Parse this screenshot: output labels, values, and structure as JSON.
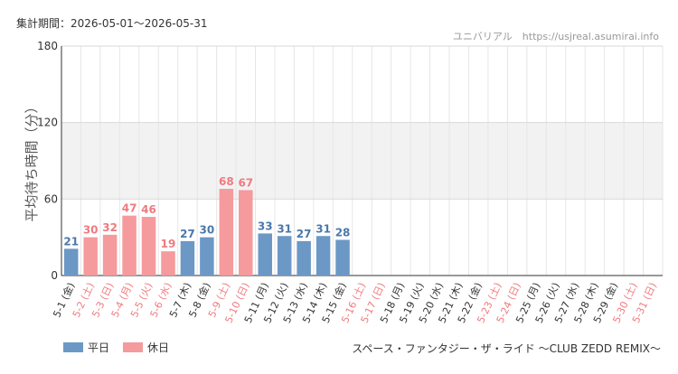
{
  "header": {
    "period_label": "集計期間：2026-05-01〜2026-05-31",
    "credit": "ユニバリアル　https://usjreal.asumirai.info"
  },
  "footer": {
    "attraction": "スペース・ファンタジー・ザ・ライド 〜CLUB ZEDD REMIX〜"
  },
  "colors": {
    "weekday": "#6c98c6",
    "holiday": "#f59a9d",
    "weekday_text": "#4a78ab",
    "holiday_text": "#ef7b7f",
    "tick_default": "#333333",
    "band": "#f2f2f2",
    "grid": "#e6e6e6"
  },
  "chart_data": {
    "type": "bar",
    "title": "",
    "xlabel": "",
    "ylabel": "平均待ち時間（分）",
    "ylim": [
      0,
      180
    ],
    "yticks": [
      0,
      60,
      120,
      180
    ],
    "shaded_band": [
      60,
      120
    ],
    "grid": true,
    "legend_position": "bottom-left",
    "series": [
      {
        "name": "平日",
        "color": "#6c98c6"
      },
      {
        "name": "休日",
        "color": "#f59a9d"
      }
    ],
    "categories": [
      {
        "label": "5-1 (金)",
        "type": "weekday",
        "value": 21
      },
      {
        "label": "5-2 (土)",
        "type": "holiday",
        "value": 30
      },
      {
        "label": "5-3 (日)",
        "type": "holiday",
        "value": 32
      },
      {
        "label": "5-4 (月)",
        "type": "holiday",
        "value": 47
      },
      {
        "label": "5-5 (火)",
        "type": "holiday",
        "value": 46
      },
      {
        "label": "5-6 (水)",
        "type": "holiday",
        "value": 19
      },
      {
        "label": "5-7 (木)",
        "type": "weekday",
        "value": 27
      },
      {
        "label": "5-8 (金)",
        "type": "weekday",
        "value": 30
      },
      {
        "label": "5-9 (土)",
        "type": "holiday",
        "value": 68
      },
      {
        "label": "5-10 (日)",
        "type": "holiday",
        "value": 67
      },
      {
        "label": "5-11 (月)",
        "type": "weekday",
        "value": 33
      },
      {
        "label": "5-12 (火)",
        "type": "weekday",
        "value": 31
      },
      {
        "label": "5-13 (水)",
        "type": "weekday",
        "value": 27
      },
      {
        "label": "5-14 (木)",
        "type": "weekday",
        "value": 31
      },
      {
        "label": "5-15 (金)",
        "type": "weekday",
        "value": 28
      },
      {
        "label": "5-16 (土)",
        "type": "holiday",
        "value": null
      },
      {
        "label": "5-17 (日)",
        "type": "holiday",
        "value": null
      },
      {
        "label": "5-18 (月)",
        "type": "weekday",
        "value": null
      },
      {
        "label": "5-19 (火)",
        "type": "weekday",
        "value": null
      },
      {
        "label": "5-20 (水)",
        "type": "weekday",
        "value": null
      },
      {
        "label": "5-21 (木)",
        "type": "weekday",
        "value": null
      },
      {
        "label": "5-22 (金)",
        "type": "weekday",
        "value": null
      },
      {
        "label": "5-23 (土)",
        "type": "holiday",
        "value": null
      },
      {
        "label": "5-24 (日)",
        "type": "holiday",
        "value": null
      },
      {
        "label": "5-25 (月)",
        "type": "weekday",
        "value": null
      },
      {
        "label": "5-26 (火)",
        "type": "weekday",
        "value": null
      },
      {
        "label": "5-27 (水)",
        "type": "weekday",
        "value": null
      },
      {
        "label": "5-28 (木)",
        "type": "weekday",
        "value": null
      },
      {
        "label": "5-29 (金)",
        "type": "weekday",
        "value": null
      },
      {
        "label": "5-30 (土)",
        "type": "holiday",
        "value": null
      },
      {
        "label": "5-31 (日)",
        "type": "holiday",
        "value": null
      }
    ]
  }
}
